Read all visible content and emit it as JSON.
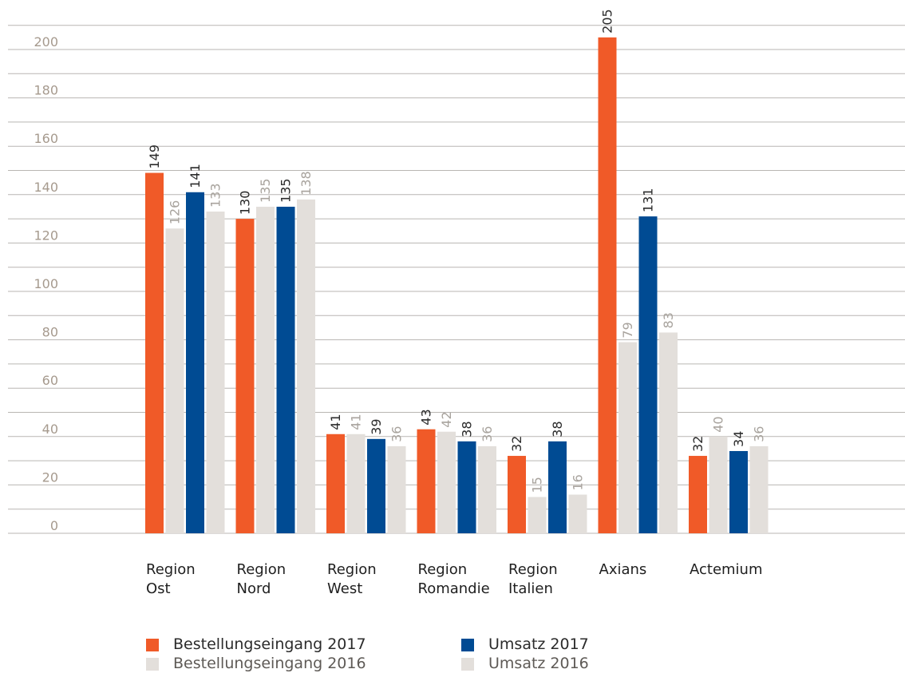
{
  "colors": {
    "orange": "#f05a28",
    "light": "#e3dfdb",
    "blue": "#004b93",
    "grid": "#b9b6b3",
    "axis_text": "#a69a8e",
    "label_dark": "#2b2b2b",
    "label_light": "#a8a39d"
  },
  "chart_data": {
    "type": "bar",
    "title": "",
    "xlabel": "",
    "ylabel": "",
    "ylim": [
      0,
      210
    ],
    "yticks": [
      0,
      20,
      40,
      60,
      80,
      100,
      120,
      140,
      160,
      180,
      200
    ],
    "grid": true,
    "legend_position": "bottom",
    "categories": [
      [
        "Region",
        "Ost"
      ],
      [
        "Region",
        "Nord"
      ],
      [
        "Region",
        "West"
      ],
      [
        "Region",
        "Romandie"
      ],
      [
        "Region",
        "Italien"
      ],
      [
        "Axians"
      ],
      [
        "Actemium"
      ]
    ],
    "series": [
      {
        "name": "Bestellungseingang 2017",
        "color": "#f05a28",
        "label_color": "#2b2b2b",
        "values": [
          149,
          130,
          41,
          43,
          32,
          205,
          32
        ]
      },
      {
        "name": "Bestellungseingang 2016",
        "color": "#e3dfdb",
        "label_color": "#a8a39d",
        "values": [
          126,
          135,
          41,
          42,
          15,
          79,
          40
        ]
      },
      {
        "name": "Umsatz 2017",
        "color": "#004b93",
        "label_color": "#2b2b2b",
        "values": [
          141,
          135,
          39,
          38,
          38,
          131,
          34
        ]
      },
      {
        "name": "Umsatz 2016",
        "color": "#e3dfdb",
        "label_color": "#a8a39d",
        "values": [
          133,
          138,
          36,
          36,
          16,
          83,
          36
        ]
      }
    ]
  }
}
